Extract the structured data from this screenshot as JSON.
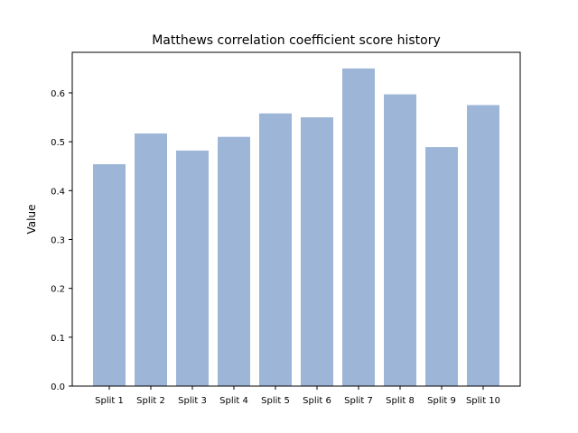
{
  "chart_data": {
    "type": "bar",
    "title": "Matthews correlation coefficient score history",
    "xlabel": "",
    "ylabel": "Value",
    "categories": [
      "Split 1",
      "Split 2",
      "Split 3",
      "Split 4",
      "Split 5",
      "Split 6",
      "Split 7",
      "Split 8",
      "Split 9",
      "Split 10"
    ],
    "values": [
      0.454,
      0.517,
      0.482,
      0.51,
      0.558,
      0.55,
      0.65,
      0.597,
      0.489,
      0.575
    ],
    "ylim": [
      0,
      0.683
    ],
    "yticks": [
      0.0,
      0.1,
      0.2,
      0.3,
      0.4,
      0.5,
      0.6
    ],
    "yticklabels": [
      "0.0",
      "0.1",
      "0.2",
      "0.3",
      "0.4",
      "0.5",
      "0.6"
    ],
    "bar_color": "#9db5d7",
    "grid": false,
    "legend": "none"
  }
}
